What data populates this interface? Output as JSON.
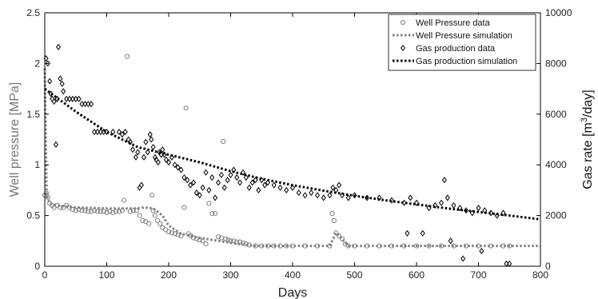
{
  "chart_data": {
    "type": "scatter",
    "x_axis": {
      "label": "Days",
      "range": [
        0,
        800
      ],
      "ticks": [
        "0",
        "100",
        "200",
        "300",
        "400",
        "500",
        "600",
        "700",
        "800"
      ]
    },
    "y_left": {
      "label": "Well pressure [MPa]",
      "range": [
        0,
        2.5
      ],
      "ticks": [
        "0",
        "0.5",
        "1",
        "1.5",
        "2",
        "2.5"
      ]
    },
    "y_right": {
      "label_main": "Gas rate [m",
      "label_sup": "3",
      "label_tail": "/day]",
      "range": [
        0,
        10000
      ],
      "ticks": [
        "0",
        "2000",
        "4000",
        "6000",
        "8000",
        "10000"
      ]
    },
    "grid": false,
    "legend_position": "top-right",
    "legend": [
      {
        "label": "Well Pressure data",
        "kind": "circle",
        "color": "#808080"
      },
      {
        "label": "Well Pressure simulation",
        "kind": "dotted",
        "color": "#808080"
      },
      {
        "label": "Gas production data",
        "kind": "diamond",
        "color": "#000000"
      },
      {
        "label": "Gas production simulation",
        "kind": "dotted",
        "color": "#000000"
      }
    ],
    "series": [
      {
        "name": "Well Pressure data",
        "axis": "left",
        "style": "circle",
        "color": "#808080",
        "points": [
          [
            0,
            0.7
          ],
          [
            3,
            0.72
          ],
          [
            5,
            0.68
          ],
          [
            8,
            0.62
          ],
          [
            12,
            0.6
          ],
          [
            15,
            0.58
          ],
          [
            20,
            0.6
          ],
          [
            25,
            0.58
          ],
          [
            30,
            0.58
          ],
          [
            35,
            0.6
          ],
          [
            40,
            0.58
          ],
          [
            45,
            0.56
          ],
          [
            50,
            0.55
          ],
          [
            55,
            0.56
          ],
          [
            60,
            0.55
          ],
          [
            65,
            0.55
          ],
          [
            70,
            0.54
          ],
          [
            75,
            0.54
          ],
          [
            80,
            0.55
          ],
          [
            85,
            0.54
          ],
          [
            90,
            0.54
          ],
          [
            95,
            0.54
          ],
          [
            100,
            0.53
          ],
          [
            105,
            0.54
          ],
          [
            110,
            0.53
          ],
          [
            115,
            0.54
          ],
          [
            120,
            0.54
          ],
          [
            125,
            0.55
          ],
          [
            128,
            0.65
          ],
          [
            133,
            2.07
          ],
          [
            138,
            0.54
          ],
          [
            143,
            0.55
          ],
          [
            148,
            0.55
          ],
          [
            153,
            0.5
          ],
          [
            158,
            0.45
          ],
          [
            163,
            0.44
          ],
          [
            168,
            0.42
          ],
          [
            173,
            0.7
          ],
          [
            175,
            0.55
          ],
          [
            178,
            0.5
          ],
          [
            182,
            0.45
          ],
          [
            186,
            0.42
          ],
          [
            190,
            0.38
          ],
          [
            195,
            0.36
          ],
          [
            200,
            0.34
          ],
          [
            205,
            0.33
          ],
          [
            210,
            0.32
          ],
          [
            215,
            0.31
          ],
          [
            220,
            0.3
          ],
          [
            225,
            0.58
          ],
          [
            228,
            1.56
          ],
          [
            232,
            0.32
          ],
          [
            236,
            0.3
          ],
          [
            240,
            0.28
          ],
          [
            245,
            0.27
          ],
          [
            250,
            0.26
          ],
          [
            255,
            0.25
          ],
          [
            260,
            0.22
          ],
          [
            265,
            0.62
          ],
          [
            270,
            0.52
          ],
          [
            275,
            0.52
          ],
          [
            280,
            0.29
          ],
          [
            285,
            0.28
          ],
          [
            288,
            1.23
          ],
          [
            292,
            0.27
          ],
          [
            296,
            0.26
          ],
          [
            300,
            0.25
          ],
          [
            305,
            0.25
          ],
          [
            310,
            0.24
          ],
          [
            315,
            0.24
          ],
          [
            320,
            0.23
          ],
          [
            325,
            0.22
          ],
          [
            330,
            0.21
          ],
          [
            340,
            0.2
          ],
          [
            350,
            0.2
          ],
          [
            360,
            0.2
          ],
          [
            370,
            0.2
          ],
          [
            380,
            0.2
          ],
          [
            390,
            0.2
          ],
          [
            400,
            0.2
          ],
          [
            420,
            0.2
          ],
          [
            440,
            0.2
          ],
          [
            460,
            0.2
          ],
          [
            464,
            0.52
          ],
          [
            467,
            0.45
          ],
          [
            470,
            0.33
          ],
          [
            475,
            0.3
          ],
          [
            480,
            0.27
          ],
          [
            485,
            0.22
          ],
          [
            490,
            0.2
          ],
          [
            500,
            0.2
          ],
          [
            520,
            0.2
          ],
          [
            540,
            0.2
          ],
          [
            560,
            0.2
          ],
          [
            580,
            0.2
          ],
          [
            600,
            0.2
          ],
          [
            620,
            0.2
          ],
          [
            640,
            0.2
          ],
          [
            660,
            0.2
          ],
          [
            680,
            0.2
          ],
          [
            700,
            0.2
          ],
          [
            720,
            0.2
          ],
          [
            740,
            0.2
          ],
          [
            750,
            0.2
          ]
        ]
      },
      {
        "name": "Well Pressure simulation",
        "axis": "left",
        "style": "dotted",
        "color": "#808080",
        "points": [
          [
            0,
            1.95
          ],
          [
            3,
            0.7
          ],
          [
            8,
            0.62
          ],
          [
            20,
            0.6
          ],
          [
            50,
            0.58
          ],
          [
            100,
            0.57
          ],
          [
            150,
            0.57
          ],
          [
            160,
            0.58
          ],
          [
            175,
            0.57
          ],
          [
            190,
            0.5
          ],
          [
            200,
            0.4
          ],
          [
            220,
            0.32
          ],
          [
            250,
            0.28
          ],
          [
            280,
            0.25
          ],
          [
            310,
            0.22
          ],
          [
            340,
            0.2
          ],
          [
            400,
            0.2
          ],
          [
            460,
            0.2
          ],
          [
            470,
            0.33
          ],
          [
            490,
            0.2
          ],
          [
            600,
            0.2
          ],
          [
            800,
            0.2
          ]
        ]
      },
      {
        "name": "Gas production data",
        "axis": "right",
        "style": "diamond",
        "color": "#000000",
        "points": [
          [
            2,
            8200
          ],
          [
            5,
            8000
          ],
          [
            8,
            7300
          ],
          [
            10,
            6800
          ],
          [
            12,
            6600
          ],
          [
            15,
            6500
          ],
          [
            18,
            4800
          ],
          [
            20,
            6600
          ],
          [
            22,
            8650
          ],
          [
            25,
            7400
          ],
          [
            28,
            7200
          ],
          [
            30,
            6900
          ],
          [
            35,
            6600
          ],
          [
            40,
            6600
          ],
          [
            45,
            6600
          ],
          [
            50,
            6600
          ],
          [
            55,
            6600
          ],
          [
            60,
            6400
          ],
          [
            65,
            6400
          ],
          [
            70,
            6400
          ],
          [
            75,
            6400
          ],
          [
            80,
            5300
          ],
          [
            85,
            5300
          ],
          [
            90,
            5300
          ],
          [
            95,
            5300
          ],
          [
            100,
            5300
          ],
          [
            110,
            5300
          ],
          [
            120,
            5300
          ],
          [
            125,
            5200
          ],
          [
            130,
            5300
          ],
          [
            135,
            5000
          ],
          [
            138,
            4900
          ],
          [
            142,
            4600
          ],
          [
            147,
            4300
          ],
          [
            150,
            4500
          ],
          [
            153,
            3100
          ],
          [
            156,
            3200
          ],
          [
            160,
            4300
          ],
          [
            163,
            4900
          ],
          [
            166,
            4500
          ],
          [
            170,
            5200
          ],
          [
            172,
            5000
          ],
          [
            175,
            4700
          ],
          [
            178,
            4300
          ],
          [
            180,
            4200
          ],
          [
            183,
            4100
          ],
          [
            185,
            4500
          ],
          [
            188,
            4400
          ],
          [
            190,
            4600
          ],
          [
            193,
            4400
          ],
          [
            196,
            4200
          ],
          [
            200,
            4100
          ],
          [
            205,
            4300
          ],
          [
            210,
            4000
          ],
          [
            215,
            3900
          ],
          [
            220,
            3800
          ],
          [
            225,
            3500
          ],
          [
            230,
            3400
          ],
          [
            235,
            3200
          ],
          [
            240,
            3300
          ],
          [
            245,
            2900
          ],
          [
            250,
            2800
          ],
          [
            255,
            3100
          ],
          [
            260,
            3700
          ],
          [
            265,
            3000
          ],
          [
            270,
            3500
          ],
          [
            275,
            2700
          ],
          [
            280,
            3300
          ],
          [
            285,
            3600
          ],
          [
            290,
            3100
          ],
          [
            295,
            3400
          ],
          [
            300,
            3600
          ],
          [
            305,
            3800
          ],
          [
            310,
            3500
          ],
          [
            315,
            3300
          ],
          [
            320,
            3700
          ],
          [
            325,
            3500
          ],
          [
            330,
            3100
          ],
          [
            335,
            3300
          ],
          [
            340,
            3400
          ],
          [
            345,
            3000
          ],
          [
            350,
            3400
          ],
          [
            355,
            3200
          ],
          [
            360,
            3300
          ],
          [
            370,
            3200
          ],
          [
            380,
            3100
          ],
          [
            390,
            3000
          ],
          [
            400,
            3100
          ],
          [
            410,
            2900
          ],
          [
            420,
            2800
          ],
          [
            430,
            2900
          ],
          [
            440,
            2800
          ],
          [
            450,
            2700
          ],
          [
            460,
            2800
          ],
          [
            465,
            3100
          ],
          [
            470,
            3000
          ],
          [
            475,
            3200
          ],
          [
            480,
            2800
          ],
          [
            490,
            2700
          ],
          [
            500,
            2800
          ],
          [
            520,
            2700
          ],
          [
            540,
            2700
          ],
          [
            560,
            2600
          ],
          [
            580,
            2500
          ],
          [
            585,
            1300
          ],
          [
            590,
            2700
          ],
          [
            600,
            2500
          ],
          [
            610,
            1300
          ],
          [
            620,
            2300
          ],
          [
            630,
            2400
          ],
          [
            640,
            2500
          ],
          [
            645,
            3400
          ],
          [
            650,
            2700
          ],
          [
            655,
            1000
          ],
          [
            660,
            2400
          ],
          [
            670,
            2300
          ],
          [
            675,
            300
          ],
          [
            680,
            2200
          ],
          [
            690,
            2100
          ],
          [
            700,
            2300
          ],
          [
            705,
            600
          ],
          [
            710,
            2200
          ],
          [
            720,
            2100
          ],
          [
            730,
            2000
          ],
          [
            740,
            2100
          ],
          [
            745,
            100
          ],
          [
            750,
            100
          ]
        ]
      },
      {
        "name": "Gas production simulation",
        "axis": "right",
        "style": "dotted",
        "color": "#000000",
        "points": [
          [
            0,
            7000
          ],
          [
            50,
            6100
          ],
          [
            100,
            5300
          ],
          [
            150,
            4700
          ],
          [
            200,
            4400
          ],
          [
            250,
            4100
          ],
          [
            300,
            3750
          ],
          [
            350,
            3450
          ],
          [
            400,
            3200
          ],
          [
            450,
            2980
          ],
          [
            500,
            2780
          ],
          [
            550,
            2600
          ],
          [
            600,
            2440
          ],
          [
            650,
            2280
          ],
          [
            700,
            2140
          ],
          [
            750,
            2000
          ],
          [
            800,
            1850
          ]
        ]
      }
    ]
  }
}
